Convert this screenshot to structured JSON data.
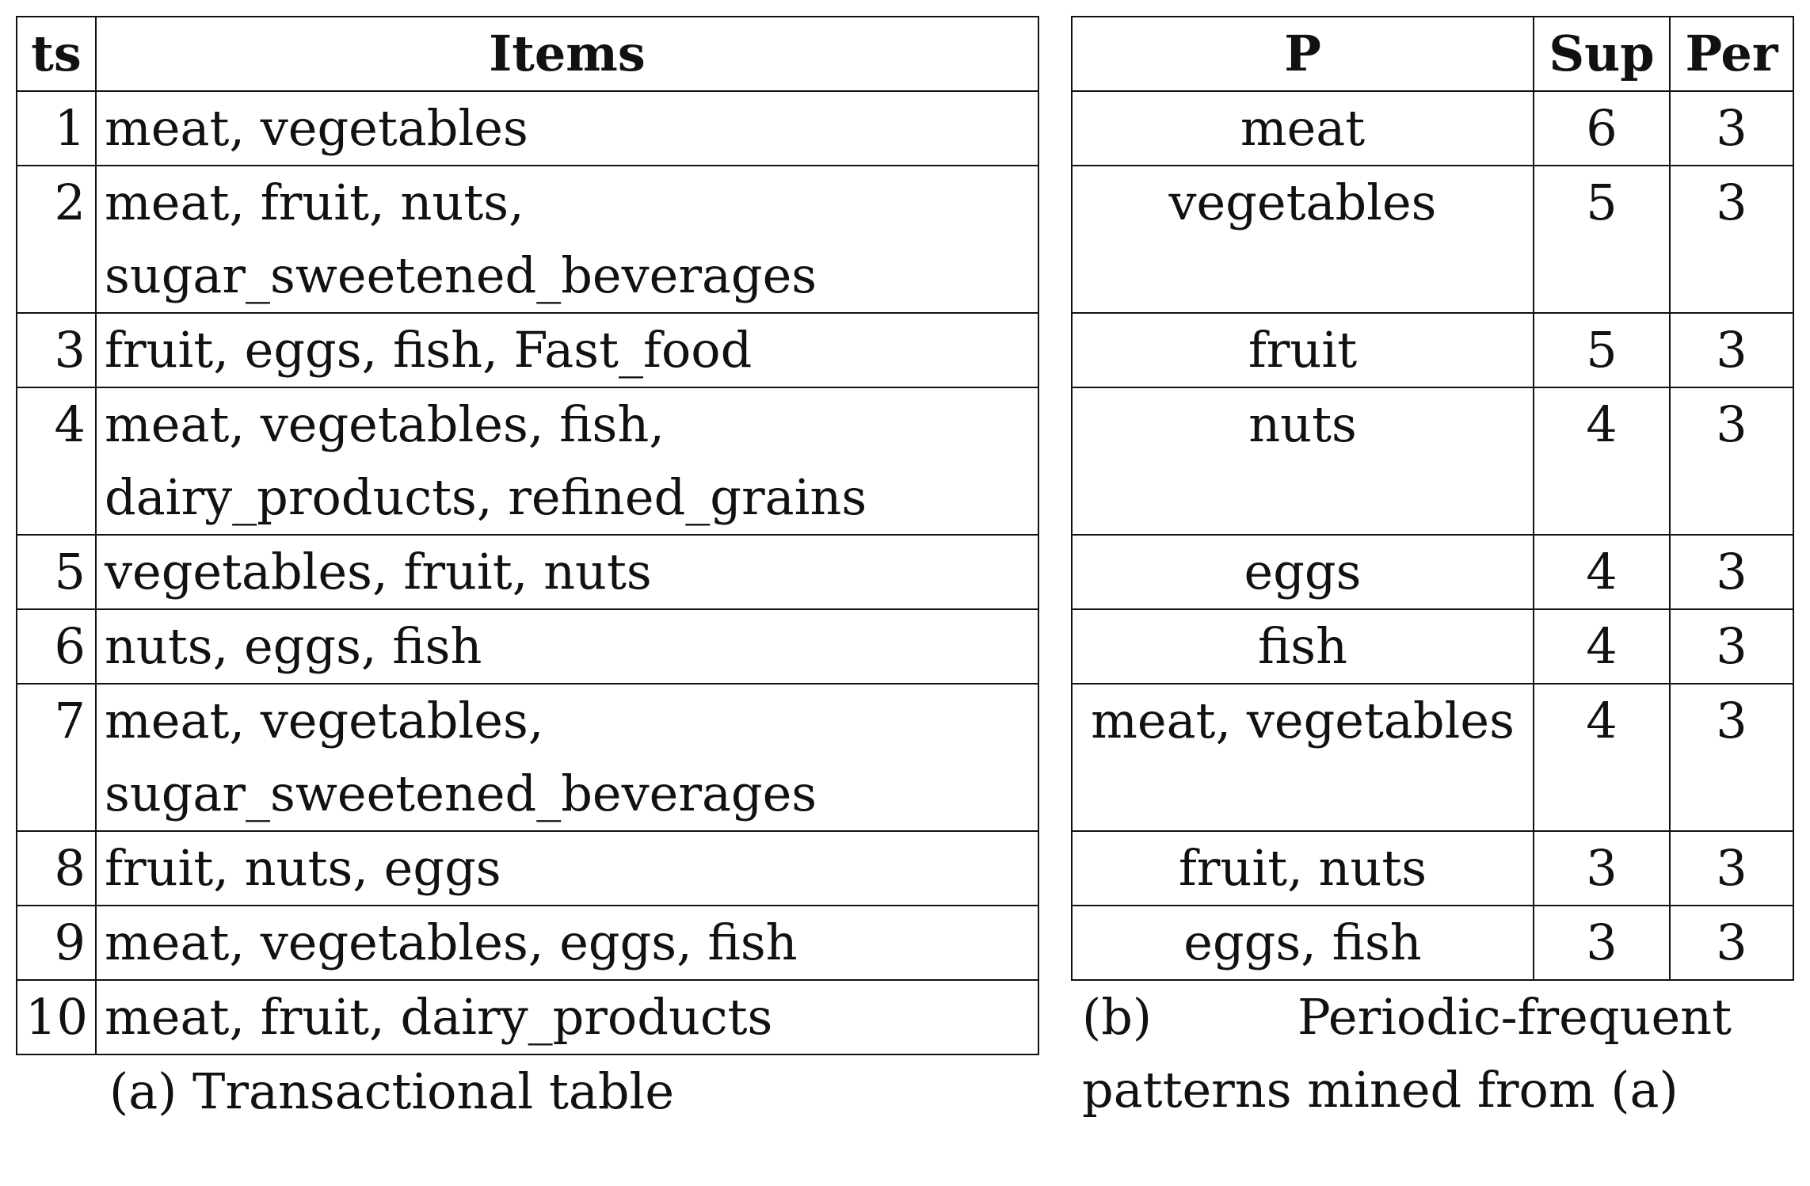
{
  "table_a": {
    "headers": {
      "ts": "ts",
      "items": "Items"
    },
    "rows": [
      {
        "ts": "1",
        "items": "meat, vegetables"
      },
      {
        "ts": "2",
        "items": "meat, fruit, nuts, sugar_sweetened_beverages"
      },
      {
        "ts": "3",
        "items": "fruit, eggs, fish, Fast_food"
      },
      {
        "ts": "4",
        "items": "meat, vegetables, fish, dairy_products, refined_grains"
      },
      {
        "ts": "5",
        "items": "vegetables, fruit, nuts"
      },
      {
        "ts": "6",
        "items": "nuts, eggs, fish"
      },
      {
        "ts": "7",
        "items": "meat, vegetables, sugar_sweetened_beverages"
      },
      {
        "ts": "8",
        "items": "fruit, nuts, eggs"
      },
      {
        "ts": "9",
        "items": "meat, vegetables, eggs, fish"
      },
      {
        "ts": "10",
        "items": "meat, fruit, dairy_products"
      }
    ],
    "caption": "(a) Transactional table"
  },
  "table_b": {
    "headers": {
      "p": "P",
      "sup": "Sup",
      "per": "Per"
    },
    "rows": [
      {
        "p": "meat",
        "sup": "6",
        "per": "3"
      },
      {
        "p": "vegetables",
        "sup": "5",
        "per": "3"
      },
      {
        "p": "fruit",
        "sup": "5",
        "per": "3"
      },
      {
        "p": "nuts",
        "sup": "4",
        "per": "3"
      },
      {
        "p": "eggs",
        "sup": "4",
        "per": "3"
      },
      {
        "p": "fish",
        "sup": "4",
        "per": "3"
      },
      {
        "p": "meat, vegetables",
        "sup": "4",
        "per": "3"
      },
      {
        "p": "fruit, nuts",
        "sup": "3",
        "per": "3"
      },
      {
        "p": "eggs, fish",
        "sup": "3",
        "per": "3"
      }
    ],
    "caption": "(b) Periodic-frequent patterns mined from (a)"
  }
}
